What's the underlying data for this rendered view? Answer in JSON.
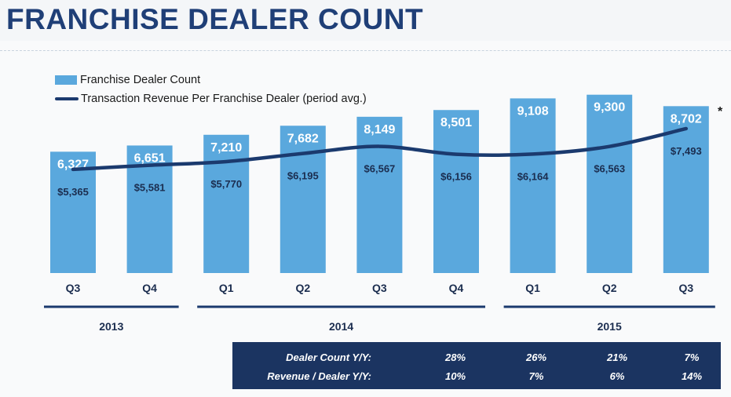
{
  "title": "FRANCHISE DEALER COUNT",
  "footnote_marker": "*",
  "colors": {
    "bar": "#5aa8dd",
    "line": "#1b3a6e",
    "title": "#1f3f77",
    "table_bg": "#1b3461"
  },
  "chart_data": {
    "type": "bar",
    "categories": [
      "Q3",
      "Q4",
      "Q1",
      "Q2",
      "Q3",
      "Q4",
      "Q1",
      "Q2",
      "Q3"
    ],
    "year_groups": [
      {
        "label": "2013",
        "from": 0,
        "to": 1
      },
      {
        "label": "2014",
        "from": 2,
        "to": 5
      },
      {
        "label": "2015",
        "from": 6,
        "to": 8
      }
    ],
    "series": [
      {
        "name": "Franchise Dealer Count",
        "type": "bar",
        "values": [
          6327,
          6651,
          7210,
          7682,
          8149,
          8501,
          9108,
          9300,
          8702
        ],
        "labels": [
          "6,327",
          "6,651",
          "7,210",
          "7,682",
          "8,149",
          "8,501",
          "9,108",
          "9,300",
          "8,702"
        ]
      },
      {
        "name": "Transaction Revenue Per Franchise Dealer (period avg.)",
        "type": "line",
        "values": [
          5365,
          5581,
          5770,
          6195,
          6567,
          6156,
          6164,
          6563,
          7493
        ],
        "labels": [
          "$5,365",
          "$5,581",
          "$5,770",
          "$6,195",
          "$6,567",
          "$6,156",
          "$6,164",
          "$6,563",
          "$7,493"
        ]
      }
    ],
    "legend": "top-left",
    "grid": false
  },
  "yoy_table": {
    "rows": [
      {
        "label": "Dealer Count Y/Y:",
        "values": [
          "28%",
          "26%",
          "21%",
          "7%"
        ]
      },
      {
        "label": "Revenue / Dealer Y/Y:",
        "values": [
          "10%",
          "7%",
          "6%",
          "14%"
        ]
      }
    ]
  }
}
